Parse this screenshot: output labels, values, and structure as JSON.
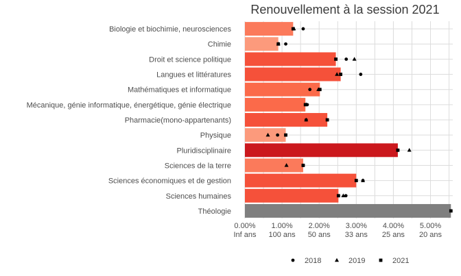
{
  "chart_data": {
    "type": "bar",
    "title": "Renouvellement à la session 2021",
    "xlabel": "",
    "ylabel": "",
    "xlim": [
      0,
      0.056
    ],
    "x_ticks": [
      {
        "value": 0.0,
        "label1": "0.00%",
        "label2": "Inf ans"
      },
      {
        "value": 0.01,
        "label1": "1.00%",
        "label2": "100 ans"
      },
      {
        "value": 0.02,
        "label1": "2.00%",
        "label2": "50 ans"
      },
      {
        "value": 0.03,
        "label1": "3.00%",
        "label2": "33 ans"
      },
      {
        "value": 0.04,
        "label1": "4.00%",
        "label2": "25 ans"
      },
      {
        "value": 0.05,
        "label1": "5.00%",
        "label2": "20 ans"
      }
    ],
    "legend_position": "bottom",
    "legend": [
      {
        "name": "2018",
        "shape": "circle"
      },
      {
        "name": "2019",
        "shape": "triangle"
      },
      {
        "name": "2021",
        "shape": "square"
      }
    ],
    "grid": true,
    "categories": [
      {
        "name": "Biologie et biochimie, neurosciences",
        "bar": 0.013,
        "color": "#fb7a5b",
        "p2018": 0.0157,
        "p2019": 0.0132,
        "p2021": 0.013
      },
      {
        "name": "Chimie",
        "bar": 0.009,
        "color": "#fc9a7c",
        "p2018": 0.011,
        "p2019": 0.009,
        "p2021": 0.009
      },
      {
        "name": "Droit et science politique",
        "bar": 0.0245,
        "color": "#f5513a",
        "p2018": 0.0273,
        "p2019": 0.0295,
        "p2021": 0.0245
      },
      {
        "name": "Langues et littératures",
        "bar": 0.0258,
        "color": "#f5513a",
        "p2018": 0.0312,
        "p2019": 0.0248,
        "p2021": 0.0258
      },
      {
        "name": "Mathématiques et informatique",
        "bar": 0.0202,
        "color": "#fb6a4a",
        "p2018": 0.0175,
        "p2019": 0.0198,
        "p2021": 0.0202
      },
      {
        "name": "Mécanique, génie informatique, énergétique, génie électrique",
        "bar": 0.0163,
        "color": "#fb6a4a",
        "p2018": 0.0168,
        "p2019": 0.0165,
        "p2021": 0.0163
      },
      {
        "name": "Pharmacie(mono-appartenants)",
        "bar": 0.0222,
        "color": "#f5513a",
        "p2018": 0.0165,
        "p2019": 0.0165,
        "p2021": 0.0222
      },
      {
        "name": "Physique",
        "bar": 0.011,
        "color": "#fc9a7c",
        "p2018": 0.0088,
        "p2019": 0.0062,
        "p2021": 0.011
      },
      {
        "name": "Pluridisciplinaire",
        "bar": 0.0412,
        "color": "#cb181d",
        "p2018": 0.0412,
        "p2019": 0.0443,
        "p2021": 0.0412
      },
      {
        "name": "Sciences de la terre",
        "bar": 0.0157,
        "color": "#fb7a5b",
        "p2018": 0.0157,
        "p2019": 0.0112,
        "p2021": 0.0157
      },
      {
        "name": "Sciences économiques et de gestion",
        "bar": 0.03,
        "color": "#f5513a",
        "p2018": 0.0318,
        "p2019": 0.0318,
        "p2021": 0.03
      },
      {
        "name": "Sciences humaines",
        "bar": 0.0252,
        "color": "#f5513a",
        "p2018": 0.0272,
        "p2019": 0.0265,
        "p2021": 0.0252
      },
      {
        "name": "Théologie",
        "bar": 0.0555,
        "color": "#7f7f7f",
        "p2018": null,
        "p2019": null,
        "p2021": 0.0555
      }
    ]
  }
}
